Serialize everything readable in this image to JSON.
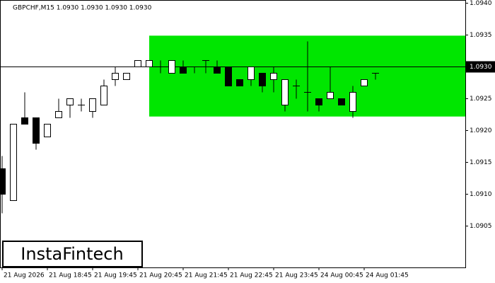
{
  "chart_data": {
    "type": "candlestick",
    "title": "GBPCHF,M15  1.0930 1.0930 1.0930 1.0930",
    "logo": "InstaFintech",
    "x_labels": [
      "21 Aug 2026",
      "21 Aug 18:45",
      "21 Aug 19:45",
      "21 Aug 20:45",
      "21 Aug 21:45",
      "21 Aug 22:45",
      "21 Aug 23:45",
      "24 Aug 00:45",
      "24 Aug 01:45"
    ],
    "open": [
      1.0914,
      1.0909,
      1.0922,
      1.0922,
      1.0919,
      1.0922,
      1.0924,
      1.0924,
      1.0923,
      1.0924,
      1.0928,
      1.0928,
      1.093,
      1.093,
      1.093,
      1.0929,
      1.093,
      1.093,
      1.0931,
      1.093,
      1.093,
      1.0928,
      1.0928,
      1.0929,
      1.0928,
      1.0924,
      1.0927,
      1.0926,
      1.0925,
      1.0925,
      1.0925,
      1.0923,
      1.0927,
      1.0929
    ],
    "high": [
      1.0916,
      1.0921,
      1.0926,
      1.0922,
      1.0921,
      1.0925,
      1.0925,
      1.0925,
      1.0925,
      1.0928,
      1.093,
      1.0929,
      1.0931,
      1.0931,
      1.0931,
      1.0931,
      1.0931,
      1.093,
      1.0931,
      1.0931,
      1.093,
      1.0928,
      1.093,
      1.0929,
      1.093,
      1.0928,
      1.0928,
      1.0934,
      1.0925,
      1.093,
      1.0925,
      1.0927,
      1.0928,
      1.0929
    ],
    "low": [
      1.0907,
      1.0909,
      1.0921,
      1.0917,
      1.0919,
      1.0922,
      1.0922,
      1.0923,
      1.0922,
      1.0924,
      1.0927,
      1.0928,
      1.093,
      1.093,
      1.0929,
      1.0929,
      1.0929,
      1.0929,
      1.0929,
      1.0929,
      1.0927,
      1.0927,
      1.0927,
      1.0926,
      1.0926,
      1.0923,
      1.0925,
      1.0923,
      1.0923,
      1.0925,
      1.0924,
      1.0922,
      1.0927,
      1.0928
    ],
    "close": [
      1.091,
      1.0921,
      1.0921,
      1.0918,
      1.0921,
      1.0923,
      1.0925,
      1.0924,
      1.0925,
      1.0927,
      1.0929,
      1.0929,
      1.0931,
      1.0931,
      1.093,
      1.0931,
      1.0929,
      1.093,
      1.0931,
      1.0929,
      1.0927,
      1.0927,
      1.093,
      1.0927,
      1.0929,
      1.0928,
      1.0927,
      1.0926,
      1.0924,
      1.0926,
      1.0924,
      1.0926,
      1.0928,
      1.0929
    ],
    "rectangle": {
      "high": 1.09349,
      "low": 1.09222,
      "color": "#00e600"
    },
    "current_price": {
      "value": 1.093,
      "label": "1.0930"
    },
    "ylim": [
      1.08985,
      1.09405
    ],
    "yticks": [
      {
        "value": 1.094,
        "label": "1.0940"
      },
      {
        "value": 1.0935,
        "label": "1.0935"
      },
      {
        "value": 1.093,
        "label": "1.0930"
      },
      {
        "value": 1.0925,
        "label": "1.0925"
      },
      {
        "value": 1.092,
        "label": "1.0920"
      },
      {
        "value": 1.0915,
        "label": "1.0915"
      },
      {
        "value": 1.091,
        "label": "1.0910"
      },
      {
        "value": 1.0905,
        "label": "1.0905"
      }
    ]
  }
}
